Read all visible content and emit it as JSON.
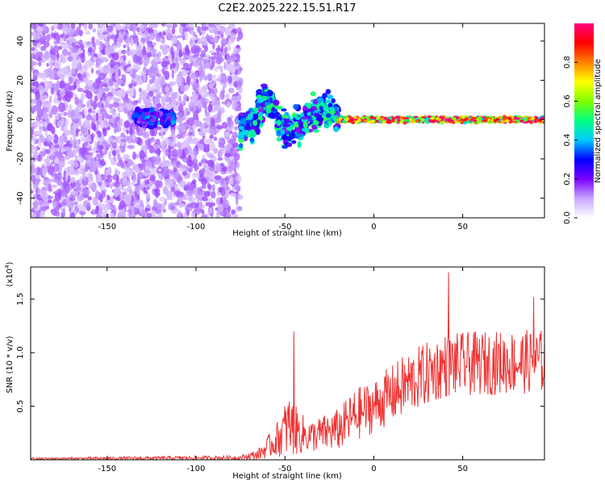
{
  "title": "C2E2.2025.222.15.51.R17",
  "chart_data": [
    {
      "type": "heatmap",
      "xlabel": "Height of straight line (km)",
      "ylabel": "Frequency (Hz)",
      "xlim": [
        -193,
        96
      ],
      "ylim": [
        -50,
        49
      ],
      "xticks": [
        -150,
        -100,
        -50,
        0,
        50
      ],
      "yticks": [
        -40,
        -20,
        0,
        20,
        40
      ],
      "colorbar": {
        "label": "Normalized spectral amplitude",
        "range": [
          0,
          1
        ],
        "ticks": [
          0.0,
          0.2,
          0.4,
          0.6,
          0.8
        ],
        "tick_labels": [
          "0.0",
          "0.2",
          "0.4",
          "0.6",
          "0.8"
        ],
        "colormap": [
          "#ffffff",
          "#c9a6ff",
          "#7a00ff",
          "#0000ff",
          "#00ccff",
          "#00ff80",
          "#80ff00",
          "#ffff00",
          "#ff8000",
          "#ff0000",
          "#ff0080"
        ]
      },
      "regions": [
        {
          "x_range": [
            -193,
            -75
          ],
          "freq_range": [
            -50,
            49
          ],
          "amplitude": 0.12,
          "description": "broadband noise"
        },
        {
          "x_range": [
            -135,
            -112
          ],
          "freq_center": 1,
          "freq_halfwidth": 6,
          "amplitude": 0.3
        },
        {
          "x_range": [
            -75,
            -20
          ],
          "freq_center": 0,
          "freq_halfwidth": 12,
          "amplitude": 0.4
        },
        {
          "x_range": [
            -20,
            96
          ],
          "freq_center": 0,
          "freq_halfwidth": 2,
          "amplitude": 0.85
        }
      ]
    },
    {
      "type": "line",
      "xlabel": "Height of straight line (km)",
      "ylabel": "SNR (10 * v/v)",
      "y_multiplier": "(x10",
      "y_multiplier_exp": "4",
      "y_multiplier_close": ")",
      "xlim": [
        -193,
        96
      ],
      "ylim": [
        0,
        1.8
      ],
      "xticks": [
        -150,
        -100,
        -50,
        0,
        50
      ],
      "yticks": [
        0.5,
        1.0,
        1.5
      ],
      "ytick_labels": [
        "0.5",
        "1.0",
        "1.5"
      ],
      "series": [
        {
          "color": "#ee3333",
          "envelope": [
            {
              "x": -193,
              "mean": 0.01,
              "spread": 0.01
            },
            {
              "x": -75,
              "mean": 0.02,
              "spread": 0.02
            },
            {
              "x": -65,
              "mean": 0.05,
              "spread": 0.05
            },
            {
              "x": -55,
              "mean": 0.18,
              "spread": 0.15
            },
            {
              "x": -48,
              "mean": 0.32,
              "spread": 0.3
            },
            {
              "x": -42,
              "mean": 0.25,
              "spread": 0.2
            },
            {
              "x": -35,
              "mean": 0.22,
              "spread": 0.15
            },
            {
              "x": -20,
              "mean": 0.28,
              "spread": 0.2
            },
            {
              "x": -10,
              "mean": 0.42,
              "spread": 0.25
            },
            {
              "x": 0,
              "mean": 0.5,
              "spread": 0.25
            },
            {
              "x": 20,
              "mean": 0.72,
              "spread": 0.3
            },
            {
              "x": 40,
              "mean": 0.88,
              "spread": 0.3
            },
            {
              "x": 60,
              "mean": 0.9,
              "spread": 0.3
            },
            {
              "x": 96,
              "mean": 0.92,
              "spread": 0.3
            }
          ],
          "peaks": [
            {
              "x": -45,
              "y": 1.2
            },
            {
              "x": 42,
              "y": 1.75
            },
            {
              "x": 90,
              "y": 1.52
            }
          ]
        }
      ]
    }
  ]
}
